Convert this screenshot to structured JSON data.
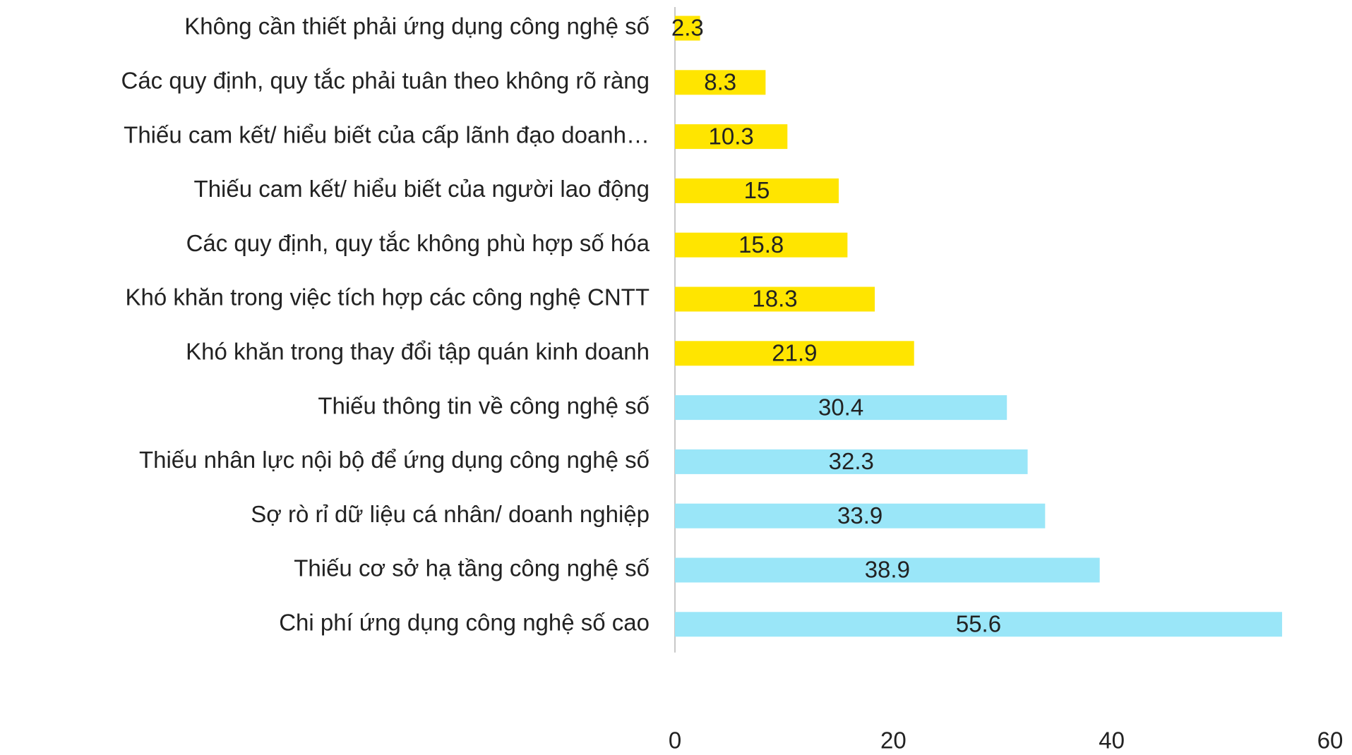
{
  "chart_data": {
    "type": "barh",
    "categories": [
      "Không cần thiết phải ứng dụng công nghệ số",
      "Các quy định, quy tắc phải tuân theo không rõ ràng",
      "Thiếu cam kết/ hiểu biết của cấp lãnh đạo doanh…",
      "Thiếu cam kết/ hiểu biết của người lao động",
      "Các quy định, quy tắc không phù hợp số hóa",
      "Khó khăn trong việc tích hợp các công nghệ CNTT",
      "Khó khăn trong thay đổi tập quán kinh doanh",
      "Thiếu thông tin về công nghệ số",
      "Thiếu nhân lực nội bộ để ứng dụng công nghệ số",
      "Sợ rò rỉ dữ liệu cá nhân/ doanh nghiệp",
      "Thiếu cơ sở hạ tầng công nghệ số",
      "Chi phí ứng dụng công nghệ số cao"
    ],
    "values": [
      2.3,
      8.3,
      10.3,
      15,
      15.8,
      18.3,
      21.9,
      30.4,
      32.3,
      33.9,
      38.9,
      55.6
    ],
    "colors": [
      "#ffe500",
      "#ffe500",
      "#ffe500",
      "#ffe500",
      "#ffe500",
      "#ffe500",
      "#ffe500",
      "#9ae6f8",
      "#9ae6f8",
      "#9ae6f8",
      "#9ae6f8",
      "#9ae6f8"
    ],
    "xlim": [
      0,
      60
    ],
    "xticks": [
      0,
      20,
      40,
      60
    ],
    "grid": false
  }
}
